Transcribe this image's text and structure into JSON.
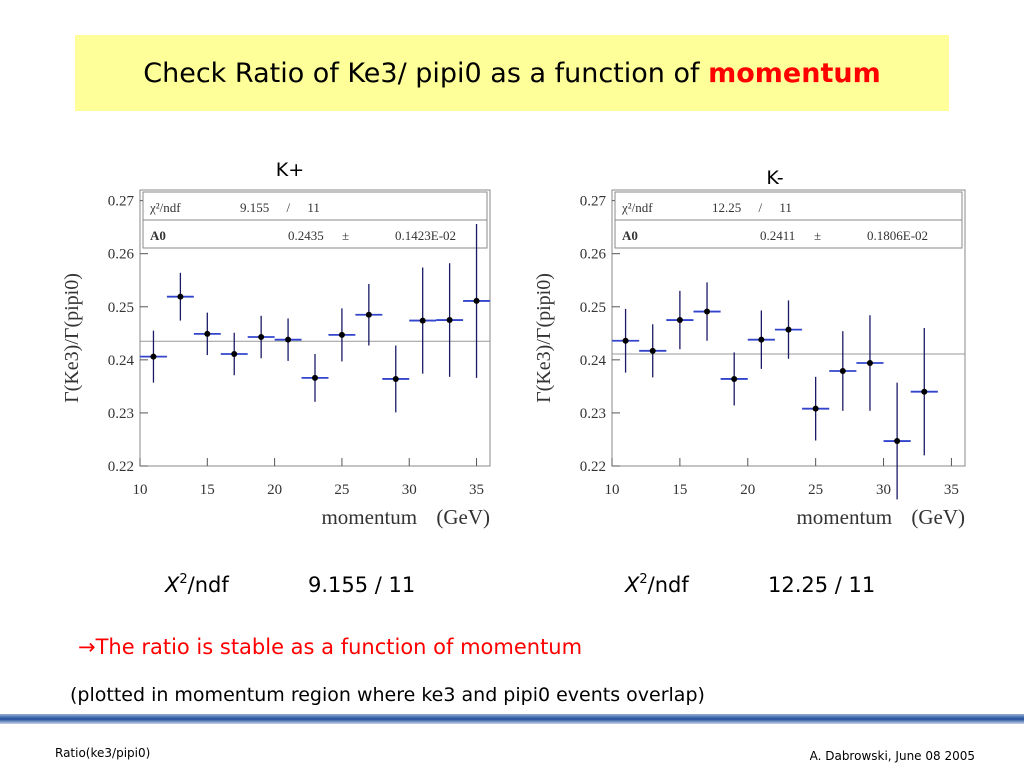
{
  "title": {
    "text": "Check Ratio of Ke3/ pipi0 as a function of ",
    "highlight": "momentum"
  },
  "chart_data": [
    {
      "type": "scatter",
      "title": "K+",
      "xlabel": "momentum (GeV)",
      "ylabel": "Γ(Ke3)/Γ(pipi0)",
      "x": [
        11,
        13,
        15,
        17,
        19,
        21,
        23,
        25,
        27,
        29,
        31,
        33,
        35
      ],
      "values": [
        0.2406,
        0.2519,
        0.2449,
        0.2411,
        0.2443,
        0.2438,
        0.2366,
        0.2447,
        0.2485,
        0.2364,
        0.2474,
        0.2475,
        0.2511
      ],
      "y_errors": [
        0.0049,
        0.0045,
        0.004,
        0.004,
        0.004,
        0.004,
        0.0045,
        0.005,
        0.0058,
        0.0063,
        0.01,
        0.0107,
        0.0145
      ],
      "x_error": 1,
      "xlim": [
        10,
        36
      ],
      "ylim": [
        0.22,
        0.272
      ],
      "xticks": [
        10,
        15,
        20,
        25,
        30,
        35
      ],
      "yticks": [
        0.22,
        0.23,
        0.24,
        0.25,
        0.26,
        0.27
      ],
      "marker_color": "#000000",
      "bar_color": "#1a1a66",
      "xbar_color": "#3344cc",
      "stats": {
        "chi2_label": "χ²/ndf",
        "chi2": "9.155 / 11",
        "param": "A0",
        "a0": 0.2435,
        "pm": "±",
        "a0_error": "0.1423E-02"
      }
    },
    {
      "type": "scatter",
      "title": "K-",
      "xlabel": "momentum (GeV)",
      "ylabel": "Γ(Ke3)/Γ(pipi0)",
      "x": [
        11,
        13,
        15,
        17,
        19,
        21,
        23,
        25,
        27,
        29,
        31,
        33
      ],
      "values": [
        0.2436,
        0.2417,
        0.2475,
        0.2491,
        0.2364,
        0.2438,
        0.2457,
        0.2308,
        0.2379,
        0.2394,
        0.2247,
        0.234
      ],
      "y_errors": [
        0.006,
        0.005,
        0.0055,
        0.0055,
        0.005,
        0.0055,
        0.0055,
        0.006,
        0.0075,
        0.009,
        0.011,
        0.012
      ],
      "x_error": 1,
      "xlim": [
        10,
        36
      ],
      "ylim": [
        0.22,
        0.272
      ],
      "xticks": [
        10,
        15,
        20,
        25,
        30,
        35
      ],
      "yticks": [
        0.22,
        0.23,
        0.24,
        0.25,
        0.26,
        0.27
      ],
      "marker_color": "#000000",
      "bar_color": "#1a1a66",
      "xbar_color": "#3344cc",
      "stats": {
        "chi2_label": "χ²/ndf",
        "chi2": "12.25 / 11",
        "param": "A0",
        "a0": 0.2411,
        "pm": "±",
        "a0_error": "0.1806E-02"
      }
    }
  ],
  "summaries": [
    {
      "symbol": "X",
      "superscript": "2",
      "label": "/ndf",
      "value": "9.155 / 11"
    },
    {
      "symbol": "X",
      "superscript": "2",
      "label": "/ndf",
      "value": "12.25 / 11"
    }
  ],
  "conclusion": "→The ratio is stable as a function of momentum",
  "note": "(plotted in momentum region where ke3 and pipi0 events overlap)",
  "footer": {
    "left": "Ratio(ke3/pipi0)",
    "right": "A. Dabrowski, June 08 2005"
  }
}
